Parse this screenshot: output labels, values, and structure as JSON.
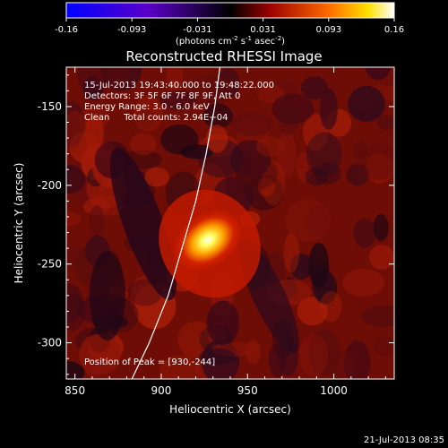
{
  "chart_data": {
    "type": "heatmap",
    "title": "Reconstructed RHESSI Image",
    "xlabel": "Heliocentric X (arcsec)",
    "ylabel": "Heliocentric Y (arcsec)",
    "xlim": [
      845,
      1035
    ],
    "ylim": [
      -323,
      -125
    ],
    "x_ticks": [
      850,
      900,
      950,
      1000
    ],
    "y_ticks": [
      -150,
      -200,
      -250,
      -300
    ],
    "colorbar": {
      "range": [
        -0.16,
        0.16
      ],
      "ticks": [
        "-0.16",
        "-0.093",
        "-0.031",
        "0.031",
        "0.093",
        "0.16"
      ],
      "unit_prefix": "(photons cm",
      "unit_sup1": "-2",
      "unit_mid": " s",
      "unit_sup2": "-1",
      "unit_mid2": " asec",
      "unit_sup3": "-2",
      "unit_suffix": ")"
    },
    "annotations": [
      "15-Jul-2013 19:43:40.000 to 19:48:22.000",
      "Detectors: 3F 5F 6F 7F 8F 9F, Att 0",
      "Energy Range: 3.0 - 6.0 keV",
      "Clean     Total counts: 2.94E+04"
    ],
    "peak_label": "Position of Peak = [930,-244]",
    "peak": {
      "x": 930,
      "y": -244,
      "value": 0.16
    },
    "limb_curve": [
      [
        883,
        -323
      ],
      [
        893,
        -300
      ],
      [
        904,
        -270
      ],
      [
        912,
        -240
      ],
      [
        920,
        -210
      ],
      [
        926,
        -180
      ],
      [
        931,
        -150
      ],
      [
        934,
        -125
      ]
    ]
  },
  "footer": {
    "date": "21-Jul-2013 08:35"
  },
  "colors": {
    "background": "#000000",
    "text": "#ffffff",
    "limb": "#ffffff"
  }
}
